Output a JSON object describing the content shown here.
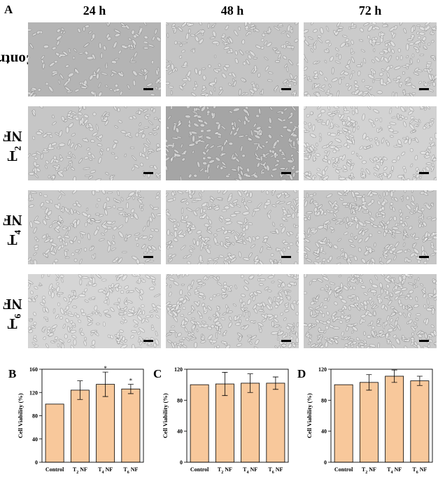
{
  "figure": {
    "panel_a_letter": "A",
    "columns": [
      "24 h",
      "48 h",
      "72 h"
    ],
    "rows": [
      {
        "main": "Control",
        "sub": "",
        "suffix": ""
      },
      {
        "main": "T",
        "sub": "2",
        "suffix": " NF"
      },
      {
        "main": "T",
        "sub": "4",
        "suffix": " NF"
      },
      {
        "main": "T",
        "sub": "6",
        "suffix": " NF"
      }
    ],
    "micrograph_tones": [
      [
        "#b4b4b4",
        "#c4c4c4",
        "#cbcbcb"
      ],
      [
        "#c6c6c6",
        "#a5a5a5",
        "#d2d2d2"
      ],
      [
        "#c9c9c9",
        "#c9c9c9",
        "#c6c6c6"
      ],
      [
        "#d5d5d5",
        "#cdcdcd",
        "#c9c9c9"
      ]
    ]
  },
  "colors": {
    "bar_fill": "#f8c89b",
    "bar_stroke": "#000000"
  },
  "chart_data": [
    {
      "panel": "B",
      "type": "bar",
      "categories": [
        {
          "main": "Control",
          "sub": "",
          "suffix": ""
        },
        {
          "main": "T",
          "sub": "2",
          "suffix": " NF"
        },
        {
          "main": "T",
          "sub": "4",
          "suffix": " NF"
        },
        {
          "main": "T",
          "sub": "6",
          "suffix": " NF"
        }
      ],
      "values": [
        100,
        124,
        134,
        126
      ],
      "errors": [
        0,
        16,
        21,
        8
      ],
      "significance": [
        "",
        "",
        "*",
        "*"
      ],
      "ylabel": "Cell Viability (%)",
      "ylim": [
        0,
        160
      ],
      "yticks": [
        0,
        40,
        80,
        120,
        160
      ]
    },
    {
      "panel": "C",
      "type": "bar",
      "categories": [
        {
          "main": "Control",
          "sub": "",
          "suffix": ""
        },
        {
          "main": "T",
          "sub": "2",
          "suffix": " NF"
        },
        {
          "main": "T",
          "sub": "4",
          "suffix": " NF"
        },
        {
          "main": "T",
          "sub": "6",
          "suffix": " NF"
        }
      ],
      "values": [
        100,
        101,
        102,
        102
      ],
      "errors": [
        0,
        15,
        12,
        8
      ],
      "significance": [
        "",
        "",
        "",
        ""
      ],
      "ylabel": "Cell Viability (%)",
      "ylim": [
        0,
        120
      ],
      "yticks": [
        0,
        40,
        80,
        120
      ]
    },
    {
      "panel": "D",
      "type": "bar",
      "categories": [
        {
          "main": "Control",
          "sub": "",
          "suffix": ""
        },
        {
          "main": "T",
          "sub": "2",
          "suffix": " NF"
        },
        {
          "main": "T",
          "sub": "4",
          "suffix": " NF"
        },
        {
          "main": "T",
          "sub": "6",
          "suffix": " NF"
        }
      ],
      "values": [
        100,
        103,
        111,
        105
      ],
      "errors": [
        0,
        10,
        8,
        6
      ],
      "significance": [
        "",
        "",
        "",
        ""
      ],
      "ylabel": "Cell Viability (%)",
      "ylim": [
        0,
        120
      ],
      "yticks": [
        0,
        40,
        80,
        120
      ]
    }
  ]
}
